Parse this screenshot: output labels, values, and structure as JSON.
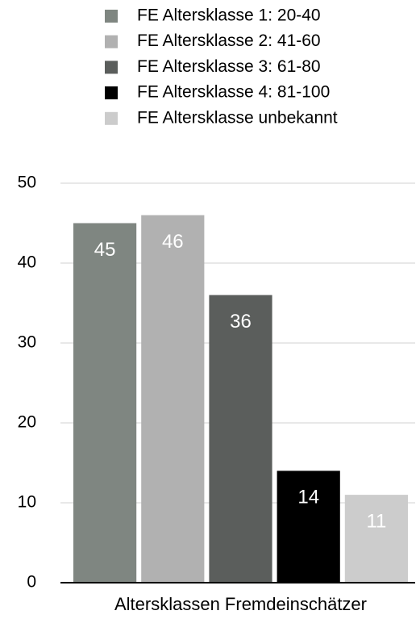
{
  "chart_data": {
    "type": "bar",
    "categories": [
      "Altersklassen Fremdeinschätzer"
    ],
    "series": [
      {
        "name": "FE Altersklasse 1: 20-40",
        "color": "#7f8681",
        "values": [
          45
        ]
      },
      {
        "name": "FE Altersklasse 2: 41-60",
        "color": "#b1b1b1",
        "values": [
          46
        ]
      },
      {
        "name": "FE Altersklasse 3: 61-80",
        "color": "#5b5e5c",
        "values": [
          36
        ]
      },
      {
        "name": "FE Altersklasse 4: 81-100",
        "color": "#000000",
        "values": [
          14
        ]
      },
      {
        "name": "FE Altersklasse unbekannt",
        "color": "#cccccc",
        "values": [
          11
        ]
      }
    ],
    "ylim": [
      0,
      50
    ],
    "yticks": [
      0,
      10,
      20,
      30,
      40,
      50
    ],
    "grid": true,
    "legend": "top"
  }
}
